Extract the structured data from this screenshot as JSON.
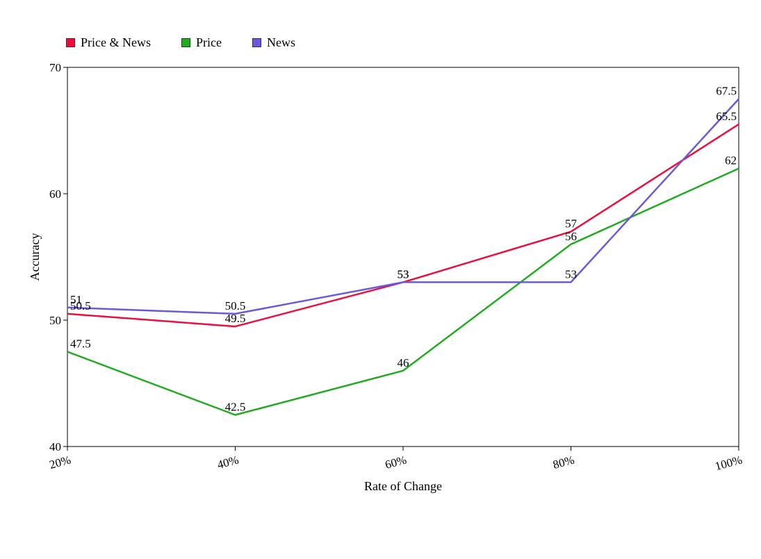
{
  "chart_data": {
    "type": "line",
    "title": "",
    "xlabel": "Rate of Change",
    "ylabel": "Accuracy",
    "categories": [
      "20%",
      "40%",
      "60%",
      "80%",
      "100%"
    ],
    "ylim": [
      40,
      70
    ],
    "yticks": [
      "40",
      "50",
      "60",
      "70"
    ],
    "legend_position": "top-left",
    "grid": false,
    "series": [
      {
        "name": "Price & News",
        "color": "#e8103f",
        "values": [
          50.5,
          49.5,
          53,
          57,
          65.5
        ],
        "labels": [
          "50.5",
          "49.5",
          "53",
          "57",
          "65.5"
        ]
      },
      {
        "name": "Price",
        "color": "#22aa22",
        "values": [
          47.5,
          42.5,
          46,
          56,
          62
        ],
        "labels": [
          "47.5",
          "42.5",
          "46",
          "56",
          "62"
        ]
      },
      {
        "name": "News",
        "color": "#6a5ad8",
        "values": [
          51,
          50.5,
          53,
          53,
          67.5
        ],
        "labels": [
          "51",
          "50.5",
          "53",
          "53",
          "67.5"
        ]
      }
    ]
  }
}
